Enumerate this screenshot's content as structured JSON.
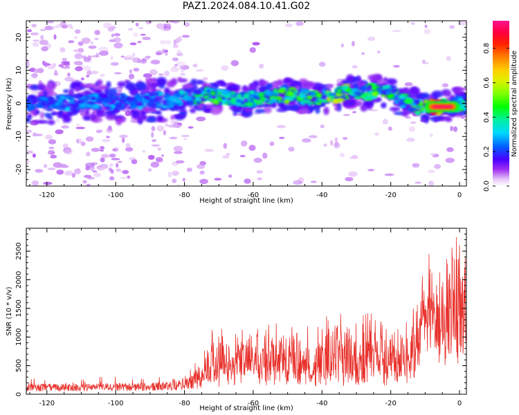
{
  "title": "PAZ1.2024.084.10.41.G02",
  "chart_data": [
    {
      "type": "heatmap",
      "xlabel": "Height of straight line (km)",
      "ylabel": "Frequency (Hz)",
      "xlim": [
        -126,
        2
      ],
      "ylim": [
        -25,
        25
      ],
      "xticks": [
        -120,
        -100,
        -80,
        -60,
        -40,
        -20,
        0
      ],
      "yticks": [
        -20,
        -10,
        0,
        10,
        20
      ],
      "colorbar": {
        "label": "Normalized spectral amplitude",
        "range": [
          0,
          0.96
        ],
        "ticks": [
          0.0,
          0.2,
          0.4,
          0.6,
          0.8
        ],
        "colormap": "gist_ncar_r-like (white-purple-blue-cyan-green-yellow-orange-red-pink)"
      },
      "ridge_profile": {
        "x": [
          -125,
          -115,
          -105,
          -95,
          -85,
          -78,
          -74,
          -70,
          -65,
          -60,
          -55,
          -50,
          -45,
          -40,
          -35,
          -32,
          -28,
          -24,
          -20,
          -16,
          -12,
          -8,
          -4,
          0,
          2
        ],
        "center_hz": [
          0,
          0,
          0.5,
          0.5,
          1,
          2,
          2.5,
          2,
          1,
          1.5,
          2,
          2.5,
          2,
          1.5,
          2.5,
          4,
          3,
          4,
          3,
          0.5,
          -1,
          -1,
          -1,
          0,
          0
        ],
        "peak_amplitude": [
          0.25,
          0.3,
          0.3,
          0.3,
          0.35,
          0.4,
          0.55,
          0.5,
          0.45,
          0.45,
          0.5,
          0.55,
          0.5,
          0.55,
          0.65,
          0.6,
          0.55,
          0.55,
          0.5,
          0.45,
          0.55,
          0.9,
          0.95,
          0.5,
          0.4
        ]
      }
    },
    {
      "type": "line",
      "xlabel": "Height of straight line (km)",
      "ylabel": "SNR (10 * v/v)",
      "xlim": [
        -126,
        2
      ],
      "ylim": [
        0,
        2900
      ],
      "xticks": [
        -120,
        -100,
        -80,
        -60,
        -40,
        -20,
        0
      ],
      "yticks": [
        0,
        500,
        1000,
        1500,
        2000,
        2500
      ],
      "color": "#e8302b",
      "envelope": {
        "x": [
          -126,
          -110,
          -90,
          -82,
          -78,
          -76,
          -74,
          -70,
          -66,
          -60,
          -55,
          -50,
          -46,
          -42,
          -38,
          -34,
          -30,
          -28,
          -26,
          -22,
          -18,
          -15,
          -13,
          -11,
          -10,
          -8,
          -5,
          -3,
          -2,
          -1,
          0,
          1,
          2
        ],
        "base": [
          130,
          130,
          140,
          170,
          250,
          330,
          440,
          480,
          500,
          520,
          510,
          500,
          490,
          480,
          520,
          560,
          520,
          540,
          560,
          580,
          620,
          600,
          700,
          1100,
          1400,
          1600,
          1800,
          1900,
          2000,
          2200,
          2000,
          1800,
          2000
        ],
        "peak": [
          280,
          300,
          300,
          330,
          450,
          650,
          900,
          1450,
          1100,
          1300,
          1250,
          1200,
          1150,
          1300,
          1420,
          1500,
          1500,
          1820,
          1520,
          1500,
          1600,
          1300,
          1800,
          2380,
          2620,
          2500,
          2300,
          2400,
          2600,
          2900,
          2600,
          2450,
          2350
        ]
      }
    }
  ]
}
